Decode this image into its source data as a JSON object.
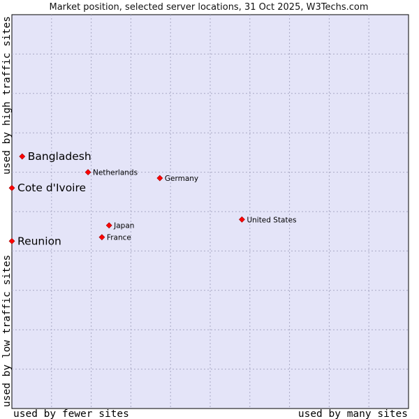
{
  "chart_data": {
    "type": "scatter",
    "title": "Market position, selected server locations, 31 Oct 2025, W3Techs.com",
    "xlabel_left": "used by fewer sites",
    "xlabel_right": "used by many sites",
    "ylabel_bottom": "used by low traffic sites",
    "ylabel_top": "used by high traffic sites",
    "xlim": [
      0,
      10
    ],
    "ylim": [
      0,
      10
    ],
    "grid": true,
    "background_color": "#e4e4f8",
    "grid_color": "#a8a8c4",
    "marker_color": "#ff0000",
    "points": [
      {
        "name": "Bangladesh",
        "x": 0.26,
        "y": 6.4,
        "highlight": true
      },
      {
        "name": "Cote d'Ivoire",
        "x": 0.0,
        "y": 5.6,
        "highlight": true
      },
      {
        "name": "Reunion",
        "x": 0.0,
        "y": 4.25,
        "highlight": true
      },
      {
        "name": "Netherlands",
        "x": 1.92,
        "y": 6.0,
        "highlight": false
      },
      {
        "name": "Germany",
        "x": 3.73,
        "y": 5.85,
        "highlight": false
      },
      {
        "name": "United States",
        "x": 5.8,
        "y": 4.8,
        "highlight": false
      },
      {
        "name": "Japan",
        "x": 2.45,
        "y": 4.65,
        "highlight": false
      },
      {
        "name": "France",
        "x": 2.27,
        "y": 4.35,
        "highlight": false
      }
    ]
  }
}
